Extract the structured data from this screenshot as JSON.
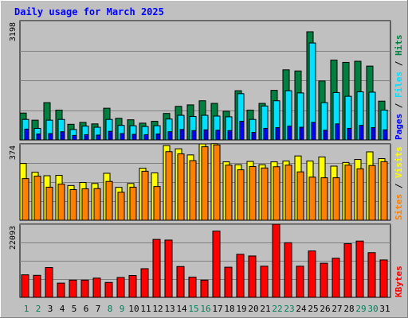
{
  "chart_data": {
    "type": "bar",
    "title": "Daily usage for March 2025",
    "categories": [
      "1",
      "2",
      "3",
      "4",
      "5",
      "6",
      "7",
      "8",
      "9",
      "10",
      "11",
      "12",
      "13",
      "14",
      "15",
      "16",
      "17",
      "18",
      "19",
      "20",
      "21",
      "22",
      "23",
      "24",
      "25",
      "26",
      "27",
      "28",
      "29",
      "30",
      "31"
    ],
    "weekend_days": [
      "1",
      "2",
      "8",
      "9",
      "15",
      "16",
      "22",
      "23",
      "29",
      "30"
    ],
    "panels": [
      {
        "id": "hits-files-pages",
        "ylim": [
          0,
          3198
        ],
        "max_label": "3198",
        "axis_label": [
          "Pages",
          "Files",
          "Hits"
        ],
        "series": [
          {
            "name": "Hits",
            "color": "#008040",
            "values": [
              720,
              530,
              1000,
              800,
              420,
              470,
              430,
              850,
              580,
              540,
              450,
              500,
              710,
              900,
              940,
              1050,
              980,
              770,
              1320,
              800,
              980,
              1330,
              1880,
              1850,
              2900,
              1580,
              2140,
              2080,
              2110,
              1980,
              1040
            ]
          },
          {
            "name": "Files",
            "color": "#00e0ff",
            "values": [
              550,
              310,
              530,
              550,
              280,
              370,
              340,
              550,
              390,
              380,
              360,
              380,
              560,
              660,
              630,
              660,
              640,
              620,
              1240,
              550,
              910,
              1050,
              1320,
              1260,
              2600,
              1000,
              1270,
              1170,
              1290,
              1280,
              800
            ]
          },
          {
            "name": "Pages",
            "color": "#0000ff",
            "values": [
              290,
              160,
              170,
              220,
              120,
              140,
              130,
              230,
              170,
              150,
              140,
              160,
              220,
              280,
              250,
              270,
              260,
              250,
              500,
              200,
              310,
              330,
              370,
              340,
              470,
              260,
              430,
              310,
              390,
              330,
              270
            ]
          }
        ]
      },
      {
        "id": "visits-sites",
        "ylim": [
          0,
          374
        ],
        "max_label": "374",
        "axis_label": [
          "Sites",
          "Visits"
        ],
        "series": [
          {
            "name": "Visits",
            "color": "#ffff00",
            "values": [
              278,
              235,
              218,
              220,
              170,
              185,
              180,
              230,
              161,
              180,
              255,
              232,
              366,
              350,
              320,
              374,
              375,
              286,
              272,
              288,
              272,
              286,
              290,
              315,
              290,
              310,
              265,
              283,
              298,
              335,
              302
            ]
          },
          {
            "name": "Sites",
            "color": "#ff8000",
            "values": [
              204,
              216,
              162,
              177,
              150,
              154,
              155,
              190,
              137,
              162,
              240,
              165,
              336,
              325,
              292,
              360,
              369,
              270,
              247,
              263,
              256,
              262,
              270,
              237,
              211,
              208,
              208,
              270,
              252,
              268,
              287
            ]
          }
        ]
      },
      {
        "id": "kbytes",
        "ylim": [
          0,
          22093
        ],
        "max_label": "22093",
        "axis_label": [
          "KBytes"
        ],
        "series": [
          {
            "name": "KBytes",
            "color": "#ff0000",
            "values": [
              6800,
              6650,
              9000,
              4300,
              5200,
              5200,
              5800,
              4500,
              6000,
              6600,
              8650,
              17500,
              17300,
              9300,
              6100,
              5200,
              20000,
              9100,
              13000,
              12500,
              9400,
              22093,
              16500,
              9400,
              14000,
              10300,
              11800,
              16200,
              17000,
              13500,
              11300
            ]
          }
        ]
      }
    ]
  }
}
